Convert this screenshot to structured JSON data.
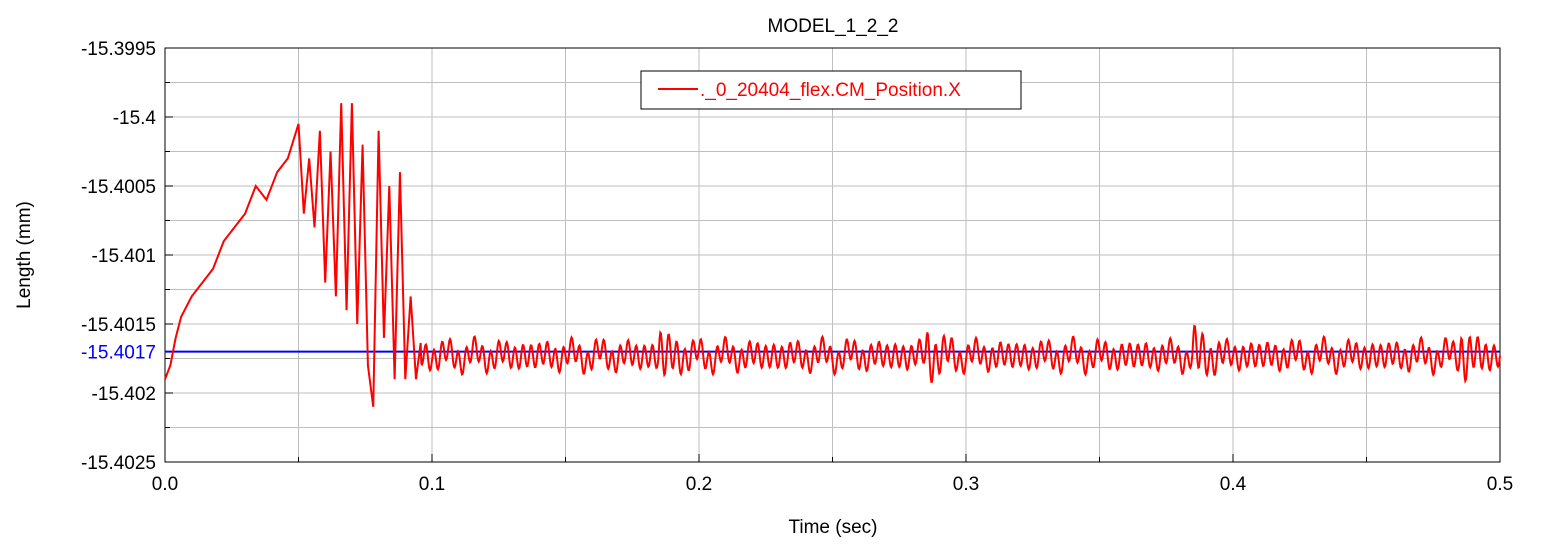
{
  "chart_data": {
    "type": "line",
    "title": "MODEL_1_2_2",
    "xlabel": "Time (sec)",
    "ylabel": "Length (mm)",
    "xlim": [
      0.0,
      0.5
    ],
    "ylim": [
      -15.4025,
      -15.3995
    ],
    "x_ticks": [
      "0.0",
      "0.1",
      "0.2",
      "0.3",
      "0.4",
      "0.5"
    ],
    "y_ticks": [
      "-15.3995",
      "-15.4",
      "-15.4005",
      "-15.401",
      "-15.4015",
      "-15.402",
      "-15.4025"
    ],
    "grid": true,
    "legend_position": "top-center",
    "series": [
      {
        "name": "._0_20404_flex.CM_Position.X",
        "color": "#ff0000",
        "x": [
          0.0,
          0.002,
          0.004,
          0.006,
          0.01,
          0.014,
          0.018,
          0.022,
          0.026,
          0.03,
          0.034,
          0.038,
          0.042,
          0.046,
          0.05,
          0.052,
          0.054,
          0.056,
          0.058,
          0.06,
          0.062,
          0.064,
          0.066,
          0.068,
          0.07,
          0.072,
          0.074,
          0.076,
          0.078,
          0.08,
          0.082,
          0.084,
          0.086,
          0.088,
          0.09,
          0.092,
          0.094,
          0.096,
          0.1,
          0.15,
          0.185,
          0.25,
          0.285,
          0.35,
          0.385,
          0.45,
          0.485,
          0.5
        ],
        "values": [
          -15.4019,
          -15.4018,
          -15.4016,
          -15.40145,
          -15.4013,
          -15.4012,
          -15.4011,
          -15.4009,
          -15.4008,
          -15.4007,
          -15.4005,
          -15.4006,
          -15.4004,
          -15.4003,
          -15.40005,
          -15.4007,
          -15.4003,
          -15.4008,
          -15.4001,
          -15.4012,
          -15.40025,
          -15.4013,
          -15.3999,
          -15.4014,
          -15.3999,
          -15.4015,
          -15.4002,
          -15.4018,
          -15.4021,
          -15.4001,
          -15.4016,
          -15.4005,
          -15.4019,
          -15.4004,
          -15.4019,
          -15.4013,
          -15.4019,
          -15.4016,
          -15.4018,
          -15.4018,
          -15.4017,
          -15.4018,
          -15.4017,
          -15.4018,
          -15.4017,
          -15.4018,
          -15.4017,
          -15.4018
        ]
      }
    ],
    "reference_line": {
      "value": -15.4017,
      "label": "-15.4017",
      "color": "#0000ff"
    }
  }
}
